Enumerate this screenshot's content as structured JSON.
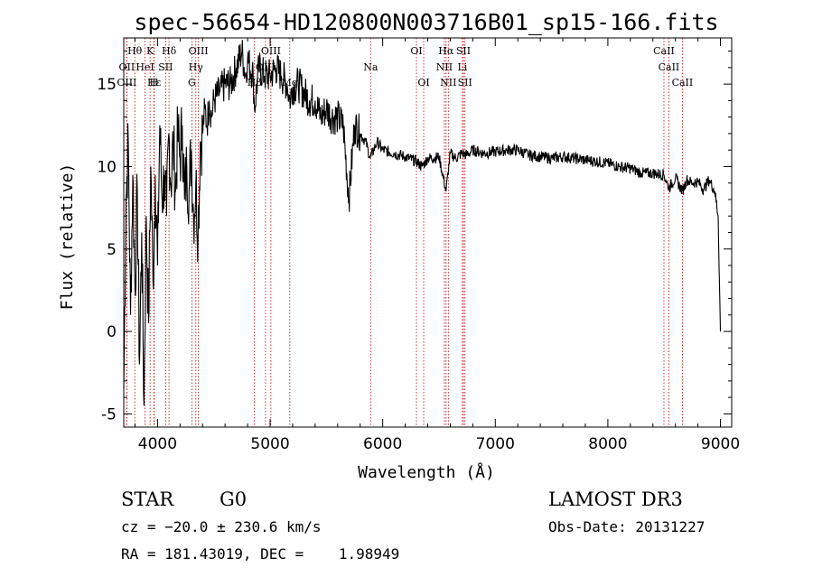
{
  "chart_data": {
    "type": "line",
    "title": "spec-56654-HD120800N003716B01_sp15-166.fits",
    "xlabel": "Wavelength (Å)",
    "ylabel": "Flux (relative)",
    "xlim": [
      3700,
      9100
    ],
    "ylim": [
      -5.8,
      17.8
    ],
    "x_ticks": [
      4000,
      5000,
      6000,
      7000,
      8000,
      9000
    ],
    "y_ticks": [
      -5,
      0,
      5,
      10,
      15
    ],
    "grid": false,
    "series": [
      {
        "x": [
          3700,
          3720,
          3740,
          3760,
          3780,
          3800,
          3820,
          3840,
          3860,
          3880,
          3900,
          3920,
          3940,
          3960,
          3980,
          4000,
          4020,
          4040,
          4060,
          4080,
          4100,
          4120,
          4140,
          4160,
          4180,
          4200,
          4220,
          4240,
          4260,
          4280,
          4300,
          4320,
          4340,
          4360,
          4380,
          4400,
          4420,
          4440,
          4460,
          4480,
          4500,
          4550,
          4600,
          4650,
          4700,
          4750,
          4780,
          4800,
          4850,
          4861,
          4900,
          4950,
          5000,
          5050,
          5100,
          5150,
          5175,
          5200,
          5250,
          5300,
          5350,
          5400,
          5450,
          5500,
          5550,
          5600,
          5650,
          5700,
          5750,
          5800,
          5850,
          5890,
          5950,
          6000,
          6100,
          6200,
          6300,
          6350,
          6400,
          6450,
          6500,
          6563,
          6600,
          6650,
          6700,
          6750,
          6800,
          6900,
          7000,
          7100,
          7200,
          7300,
          7400,
          7500,
          7600,
          7700,
          7800,
          7900,
          8000,
          8100,
          8200,
          8300,
          8400,
          8498,
          8542,
          8600,
          8662,
          8700,
          8750,
          8800,
          8850,
          8900,
          8950,
          8980,
          9000
        ],
        "y": [
          -3.5,
          8.0,
          11.5,
          1.0,
          9.5,
          2.5,
          8.5,
          -2.0,
          6.0,
          -4.5,
          7.0,
          0.5,
          10.0,
          3.0,
          9.5,
          4.0,
          12.5,
          8.0,
          9.5,
          7.0,
          12.0,
          9.0,
          11.5,
          8.5,
          12.0,
          10.5,
          12.5,
          8.0,
          10.0,
          8.5,
          11.0,
          7.0,
          9.0,
          6.0,
          11.5,
          12.0,
          13.5,
          12.5,
          14.0,
          13.0,
          14.0,
          14.5,
          15.0,
          15.0,
          16.0,
          17.0,
          15.5,
          16.5,
          15.5,
          13.5,
          16.0,
          15.5,
          15.5,
          16.0,
          15.5,
          15.0,
          14.0,
          14.8,
          15.0,
          14.5,
          14.0,
          14.0,
          13.0,
          13.5,
          13.0,
          13.0,
          12.5,
          8.0,
          12.5,
          12.0,
          11.5,
          10.5,
          11.5,
          11.0,
          10.8,
          10.6,
          10.3,
          10.0,
          10.5,
          10.5,
          10.6,
          8.5,
          10.8,
          10.5,
          10.8,
          10.7,
          11.0,
          10.8,
          10.9,
          11.0,
          11.0,
          10.7,
          10.6,
          10.5,
          10.6,
          10.5,
          10.4,
          10.3,
          10.2,
          10.0,
          9.9,
          9.6,
          9.6,
          9.5,
          8.7,
          9.3,
          8.5,
          9.2,
          9.0,
          9.1,
          8.6,
          9.2,
          8.5,
          7.0,
          0.0
        ]
      }
    ],
    "spectral_lines": [
      {
        "label": "Hθ",
        "wl": 3798,
        "row": 1
      },
      {
        "label": "K",
        "wl": 3934,
        "row": 1
      },
      {
        "label": "Hδ",
        "wl": 4102,
        "row": 1
      },
      {
        "label": "OIII",
        "wl": 4363,
        "row": 1
      },
      {
        "label": "OIII",
        "wl": 5007,
        "row": 1
      },
      {
        "label": "OI",
        "wl": 6300,
        "row": 1
      },
      {
        "label": "Hα",
        "wl": 6563,
        "row": 1
      },
      {
        "label": "SII",
        "wl": 6717,
        "row": 1
      },
      {
        "label": "CaII",
        "wl": 8498,
        "row": 1
      },
      {
        "label": "OII",
        "wl": 3727,
        "row": 2
      },
      {
        "label": "HeI",
        "wl": 3889,
        "row": 2
      },
      {
        "label": "SII",
        "wl": 4072,
        "row": 2
      },
      {
        "label": "Hγ",
        "wl": 4340,
        "row": 2
      },
      {
        "label": "OIII",
        "wl": 4959,
        "row": 2
      },
      {
        "label": "Na",
        "wl": 5893,
        "row": 2
      },
      {
        "label": "NII",
        "wl": 6548,
        "row": 2
      },
      {
        "label": "Li",
        "wl": 6708,
        "row": 2
      },
      {
        "label": "CaII",
        "wl": 8542,
        "row": 2
      },
      {
        "label": "OIII",
        "wl": 3727,
        "row": 3
      },
      {
        "label": "Hε",
        "wl": 3970,
        "row": 3
      },
      {
        "label": "H",
        "wl": 3968,
        "row": 3
      },
      {
        "label": "G",
        "wl": 4305,
        "row": 3
      },
      {
        "label": "Hβ",
        "wl": 4861,
        "row": 3
      },
      {
        "label": "Mg",
        "wl": 5175,
        "row": 3
      },
      {
        "label": "OI",
        "wl": 6364,
        "row": 3
      },
      {
        "label": "NII",
        "wl": 6583,
        "row": 3
      },
      {
        "label": "SII",
        "wl": 6731,
        "row": 3
      },
      {
        "label": "CaII",
        "wl": 8662,
        "row": 3
      }
    ]
  },
  "info": {
    "object_class": "STAR",
    "subclass": "G0",
    "survey": "LAMOST DR3",
    "cz": "cz = −20.0 ± 230.6 km/s",
    "obs_date": "Obs-Date: 20131227",
    "coords": "RA = 181.43019, DEC =    1.98949"
  },
  "colors": {
    "spectrum": "#000000",
    "line_markers": "#c00000",
    "axes": "#000000"
  }
}
